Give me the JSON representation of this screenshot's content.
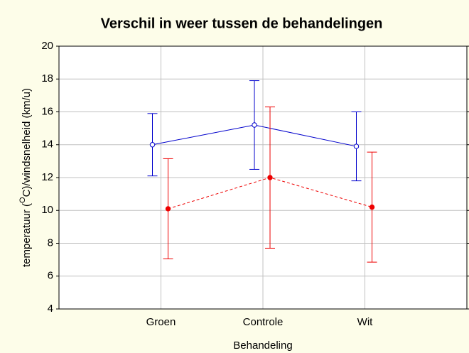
{
  "chart_data": {
    "type": "errorbar_line",
    "title": "Verschil in weer tussen de behandelingen",
    "xlabel": "Behandeling",
    "ylabel": [
      "temperatuur (",
      "O",
      "C)/windsnelheid (km/u)"
    ],
    "categories": [
      "Groen",
      "Controle",
      "Wit"
    ],
    "series": [
      {
        "color": "#0000cc",
        "marker": "open",
        "dash": false,
        "values": [
          14.0,
          15.2,
          13.9
        ],
        "errors": [
          1.9,
          2.7,
          2.1
        ]
      },
      {
        "color": "#ee0000",
        "marker": "filled",
        "dash": true,
        "values": [
          10.1,
          12.0,
          10.2
        ],
        "errors": [
          3.05,
          4.3,
          3.35
        ]
      }
    ],
    "ylim": [
      4,
      20
    ],
    "yticks": [
      4,
      6,
      8,
      10,
      12,
      14,
      16,
      18,
      20
    ],
    "grid": true
  }
}
